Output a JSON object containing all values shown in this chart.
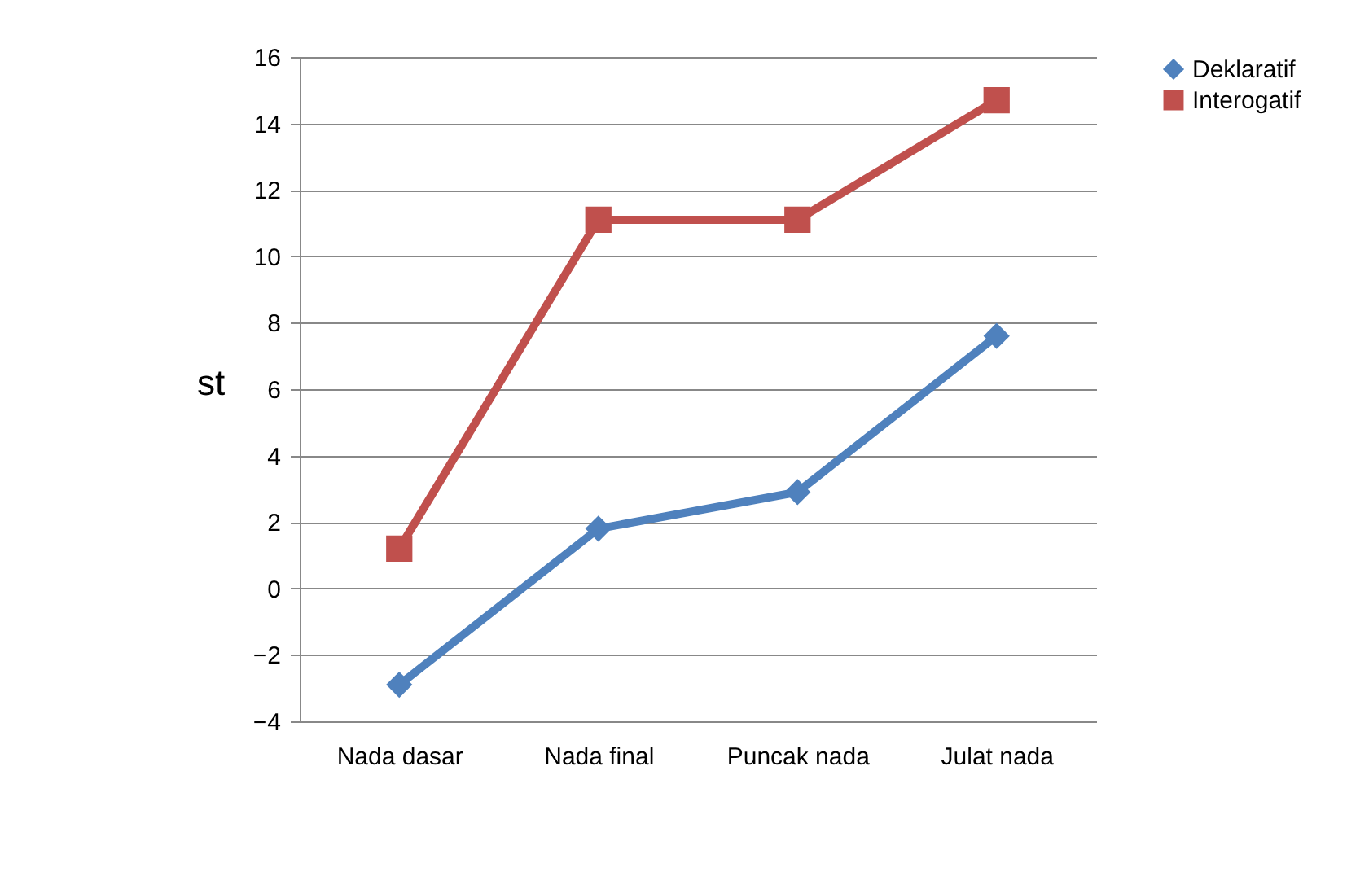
{
  "chart_data": {
    "type": "line",
    "ylabel": "st",
    "categories": [
      "Nada dasar",
      "Nada final",
      "Puncak nada",
      "Julat nada"
    ],
    "series": [
      {
        "name": "Deklaratif",
        "color": "#4f81bd",
        "marker": "diamond",
        "values": [
          -2.9,
          1.8,
          2.9,
          7.6
        ]
      },
      {
        "name": "Interogatif",
        "color": "#c0504d",
        "marker": "square",
        "values": [
          1.2,
          11.1,
          11.1,
          14.7
        ]
      }
    ],
    "ylim": [
      -4,
      16
    ],
    "yticks": [
      -4,
      -2,
      0,
      2,
      4,
      6,
      8,
      10,
      12,
      14,
      16
    ],
    "grid": "y",
    "legend": "right",
    "line_style": "solid"
  }
}
